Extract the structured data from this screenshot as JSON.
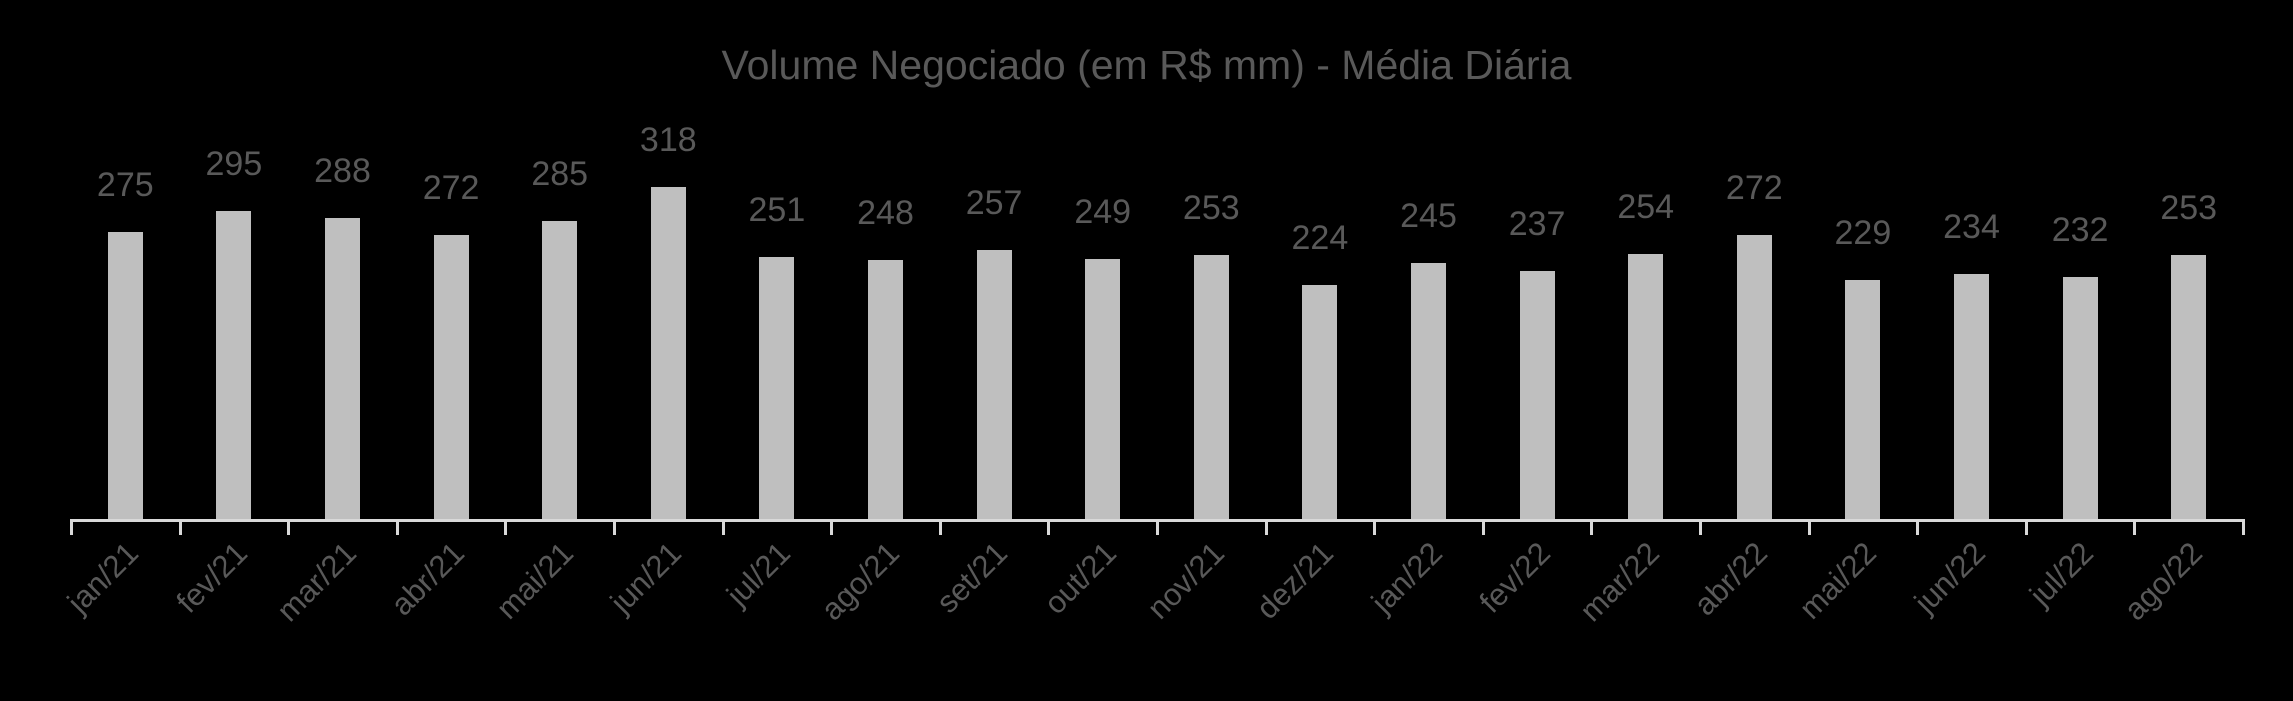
{
  "title": "Volume Negociado (em R$ mm) - Média Diária",
  "colors": {
    "background": "#000000",
    "bar": "#bfbfbf",
    "text": "#595959",
    "axis": "#d9d9d9"
  },
  "chart_data": {
    "type": "bar",
    "title": "Volume Negociado (em R$ mm) - Média Diária",
    "xlabel": "",
    "ylabel": "",
    "categories": [
      "jan/21",
      "fev/21",
      "mar/21",
      "abr/21",
      "mai/21",
      "jun/21",
      "jul/21",
      "ago/21",
      "set/21",
      "out/21",
      "nov/21",
      "dez/21",
      "jan/22",
      "fev/22",
      "mar/22",
      "abr/22",
      "mai/22",
      "jun/22",
      "jul/22",
      "ago/22"
    ],
    "values": [
      275,
      295,
      288,
      272,
      285,
      318,
      251,
      248,
      257,
      249,
      253,
      224,
      245,
      237,
      254,
      272,
      229,
      234,
      232,
      253
    ],
    "data_labels": true,
    "grid": false,
    "legend": null,
    "ylim": [
      0,
      340
    ],
    "x_tick_rotation": -45
  }
}
